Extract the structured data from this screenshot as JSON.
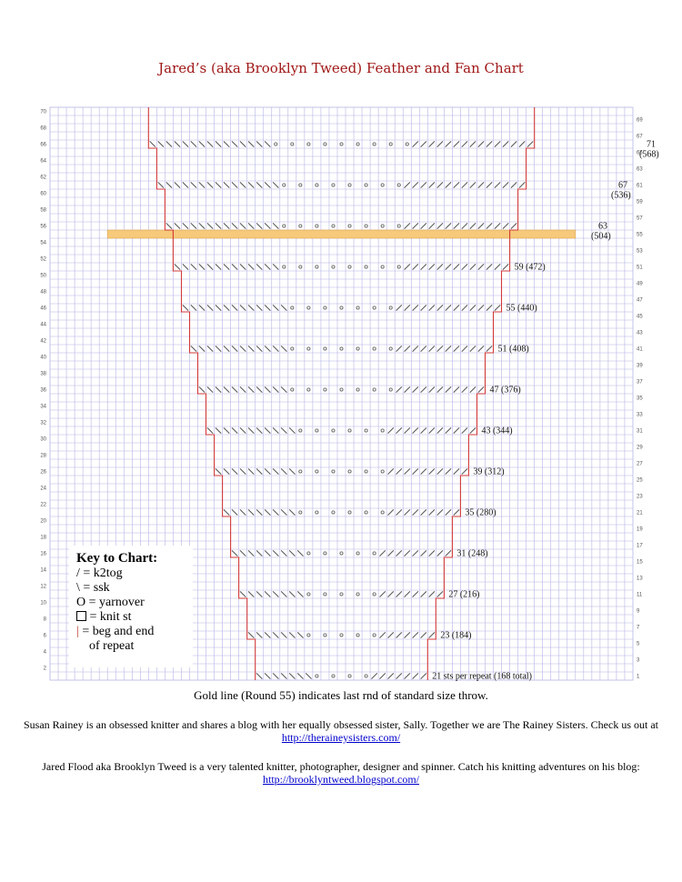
{
  "title": "Jared’s (aka Brooklyn Tweed) Feather and Fan Chart",
  "left_row_numbers": [
    "70",
    "68",
    "66",
    "64",
    "62",
    "60",
    "58",
    "56",
    "54",
    "52",
    "50",
    "48",
    "46",
    "44",
    "42",
    "40",
    "38",
    "36",
    "34",
    "32",
    "30",
    "28",
    "26",
    "24",
    "22",
    "20",
    "18",
    "16",
    "14",
    "12",
    "10",
    "8",
    "6",
    "4",
    "2"
  ],
  "right_row_numbers": [
    "69",
    "67",
    "65",
    "63",
    "61",
    "59",
    "57",
    "55",
    "53",
    "51",
    "49",
    "47",
    "45",
    "43",
    "41",
    "39",
    "37",
    "35",
    "33",
    "31",
    "29",
    "27",
    "25",
    "23",
    "21",
    "19",
    "17",
    "15",
    "13",
    "11",
    "9",
    "7",
    "5",
    "3",
    "1"
  ],
  "stitch_counts": [
    {
      "label": "71",
      "sub": "(568)"
    },
    {
      "label": "67",
      "sub": "(536)"
    },
    {
      "label": "63",
      "sub": "(504)"
    },
    {
      "label": "59 (472)",
      "sub": ""
    },
    {
      "label": "55 (440)",
      "sub": ""
    },
    {
      "label": "51 (408)",
      "sub": ""
    },
    {
      "label": "47 (376)",
      "sub": ""
    },
    {
      "label": "43 (344)",
      "sub": ""
    },
    {
      "label": "39 (312)",
      "sub": ""
    },
    {
      "label": "35 (280)",
      "sub": ""
    },
    {
      "label": "31 (248)",
      "sub": ""
    },
    {
      "label": "27 (216)",
      "sub": ""
    },
    {
      "label": "23 (184)",
      "sub": ""
    },
    {
      "label": "21 sts per repeat (168 total)",
      "sub": ""
    }
  ],
  "key": {
    "title": "Key to Chart:",
    "k2tog": "/ = k2tog",
    "ssk": "\\ = ssk",
    "yo": "O = yarnover",
    "knit": "= knit st",
    "bar_symbol": "|",
    "repeat_line1": "= beg and end",
    "repeat_line2": "of repeat"
  },
  "gold_note": "Gold line (Round 55) indicates last rnd of standard size throw.",
  "para1_text": "Susan Rainey is an obsessed knitter and shares a blog with her equally obsessed sister, Sally.  Together we are The Rainey Sisters.  Check us out at",
  "para1_link": "http://theraineysisters.com/",
  "para2_text": "Jared Flood aka Brooklyn Tweed is a very talented knitter, photographer, designer and spinner. Catch his knitting adventures on his blog:",
  "para2_link": "http://brooklyntweed.blogspot.com/",
  "colors": {
    "grid": "#b4b4e6",
    "repeat_line": "#d23a3a",
    "gold": "#f6c97b",
    "symbol": "#555555"
  }
}
